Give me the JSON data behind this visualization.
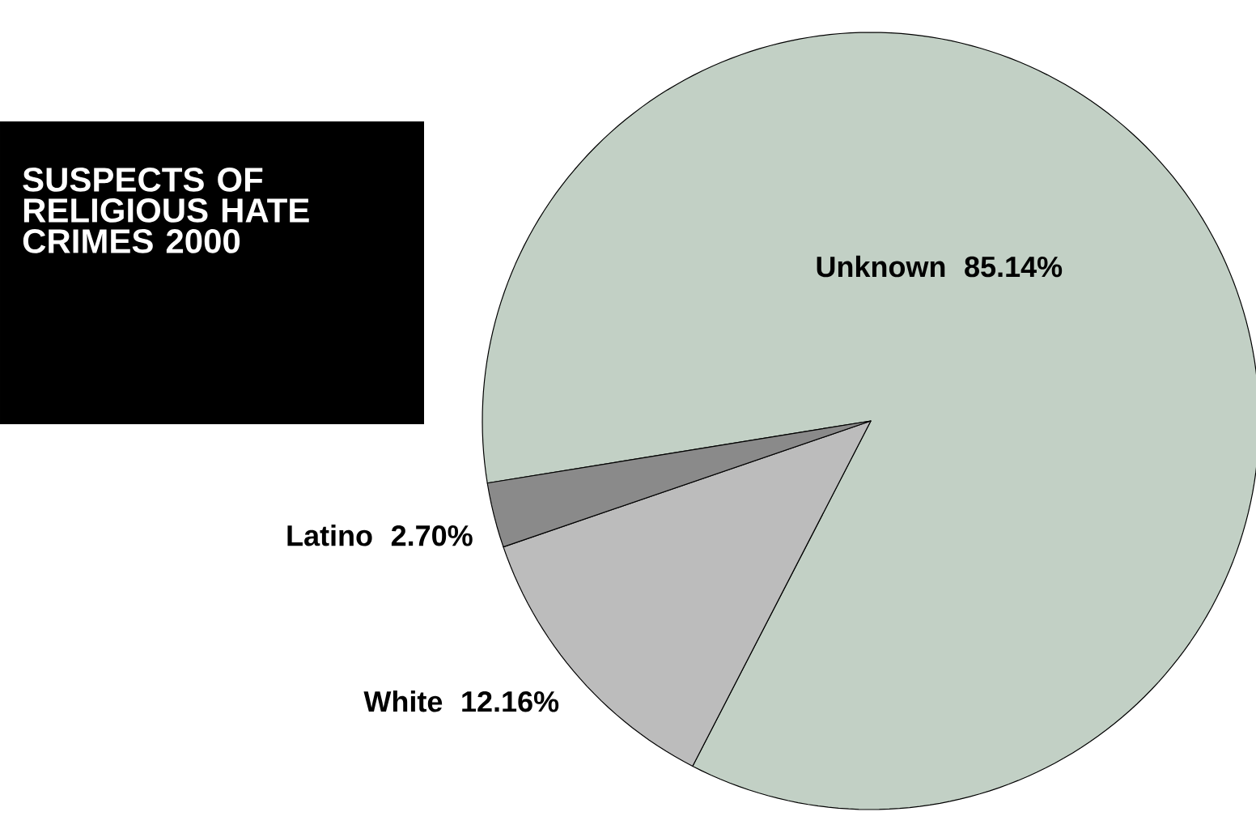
{
  "chart_data": {
    "type": "pie",
    "title": "SUSPECTS OF RELIGIOUS HATE CRIMES 2000",
    "categories": [
      "Unknown",
      "White",
      "Latino"
    ],
    "values": [
      85.14,
      12.16,
      2.7
    ],
    "value_labels": [
      "85.14%",
      "12.16%",
      "2.70%"
    ],
    "colors": [
      "#c2d0c5",
      "#bcbcbc",
      "#8a8a8a"
    ]
  }
}
